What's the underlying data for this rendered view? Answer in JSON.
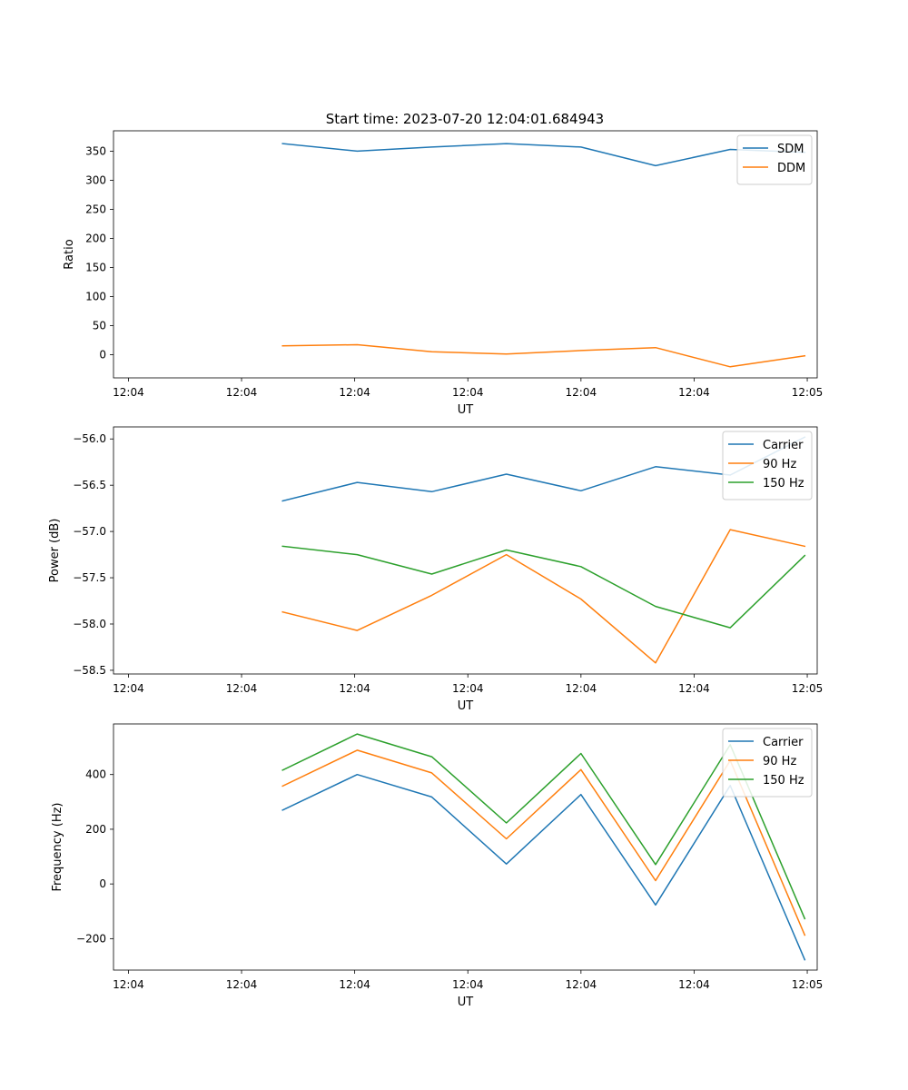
{
  "figure_title": "Start time: 2023-07-20 12:04:01.684943",
  "colors": {
    "blue": "#1f77b4",
    "orange": "#ff7f0e",
    "green": "#2ca02c"
  },
  "chart_data": [
    {
      "type": "line",
      "id": "ratio",
      "title": "Start time: 2023-07-20 12:04:01.684943",
      "xlabel": "UT",
      "ylabel": "Ratio",
      "x": [
        1.6,
        2.2,
        2.8,
        3.4,
        4.0,
        4.6,
        5.2,
        5.8
      ],
      "xlim": [
        0.24,
        5.9
      ],
      "xticks": [
        0.36,
        1.27,
        2.18,
        3.09,
        4.0,
        4.91,
        5.82
      ],
      "xtick_labels": [
        "12:04",
        "12:04",
        "12:04",
        "12:04",
        "12:04",
        "12:04",
        "12:05"
      ],
      "ylim": [
        -40,
        385
      ],
      "yticks": [
        0,
        50,
        100,
        150,
        200,
        250,
        300,
        350
      ],
      "ytick_labels": [
        "0",
        "50",
        "100",
        "150",
        "200",
        "250",
        "300",
        "350"
      ],
      "legend_position": "top-right",
      "series": [
        {
          "name": "SDM",
          "color": "#1f77b4",
          "values": [
            363,
            350,
            357,
            363,
            357,
            325,
            353,
            348
          ]
        },
        {
          "name": "DDM",
          "color": "#ff7f0e",
          "values": [
            15,
            17,
            5,
            1,
            7,
            12,
            -21,
            -2
          ]
        }
      ]
    },
    {
      "type": "line",
      "id": "power",
      "title": "",
      "xlabel": "UT",
      "ylabel": "Power (dB)",
      "x": [
        1.6,
        2.2,
        2.8,
        3.4,
        4.0,
        4.6,
        5.2,
        5.8
      ],
      "xlim": [
        0.24,
        5.9
      ],
      "xticks": [
        0.36,
        1.27,
        2.18,
        3.09,
        4.0,
        4.91,
        5.82
      ],
      "xtick_labels": [
        "12:04",
        "12:04",
        "12:04",
        "12:04",
        "12:04",
        "12:04",
        "12:05"
      ],
      "ylim": [
        -58.54,
        -55.87
      ],
      "yticks": [
        -58.5,
        -58.0,
        -57.5,
        -57.0,
        -56.5,
        -56.0
      ],
      "ytick_labels": [
        "−58.5",
        "−58.0",
        "−57.5",
        "−57.0",
        "−56.5",
        "−56.0"
      ],
      "legend_position": "top-right",
      "series": [
        {
          "name": "Carrier",
          "color": "#1f77b4",
          "values": [
            -56.67,
            -56.47,
            -56.57,
            -56.38,
            -56.56,
            -56.3,
            -56.39,
            -55.98
          ]
        },
        {
          "name": "90 Hz",
          "color": "#ff7f0e",
          "values": [
            -57.87,
            -58.07,
            -57.69,
            -57.25,
            -57.73,
            -58.42,
            -56.98,
            -57.16
          ]
        },
        {
          "name": "150 Hz",
          "color": "#2ca02c",
          "values": [
            -57.16,
            -57.25,
            -57.46,
            -57.2,
            -57.38,
            -57.81,
            -58.04,
            -57.26
          ]
        }
      ]
    },
    {
      "type": "line",
      "id": "frequency",
      "title": "",
      "xlabel": "UT",
      "ylabel": "Frequency (Hz)",
      "x": [
        1.6,
        2.2,
        2.8,
        3.4,
        4.0,
        4.6,
        5.2,
        5.8
      ],
      "xlim": [
        0.24,
        5.9
      ],
      "xticks": [
        0.36,
        1.27,
        2.18,
        3.09,
        4.0,
        4.91,
        5.82
      ],
      "xtick_labels": [
        "12:04",
        "12:04",
        "12:04",
        "12:04",
        "12:04",
        "12:04",
        "12:05"
      ],
      "ylim": [
        -315,
        585
      ],
      "yticks": [
        -200,
        0,
        200,
        400
      ],
      "ytick_labels": [
        "−200",
        "0",
        "200",
        "400"
      ],
      "legend_position": "top-right",
      "series": [
        {
          "name": "Carrier",
          "color": "#1f77b4",
          "values": [
            270,
            400,
            318,
            73,
            327,
            -77,
            360,
            -277
          ]
        },
        {
          "name": "90 Hz",
          "color": "#ff7f0e",
          "values": [
            358,
            489,
            406,
            165,
            418,
            12,
            451,
            -187
          ]
        },
        {
          "name": "150 Hz",
          "color": "#2ca02c",
          "values": [
            416,
            548,
            465,
            223,
            477,
            71,
            509,
            -127
          ]
        }
      ]
    }
  ]
}
